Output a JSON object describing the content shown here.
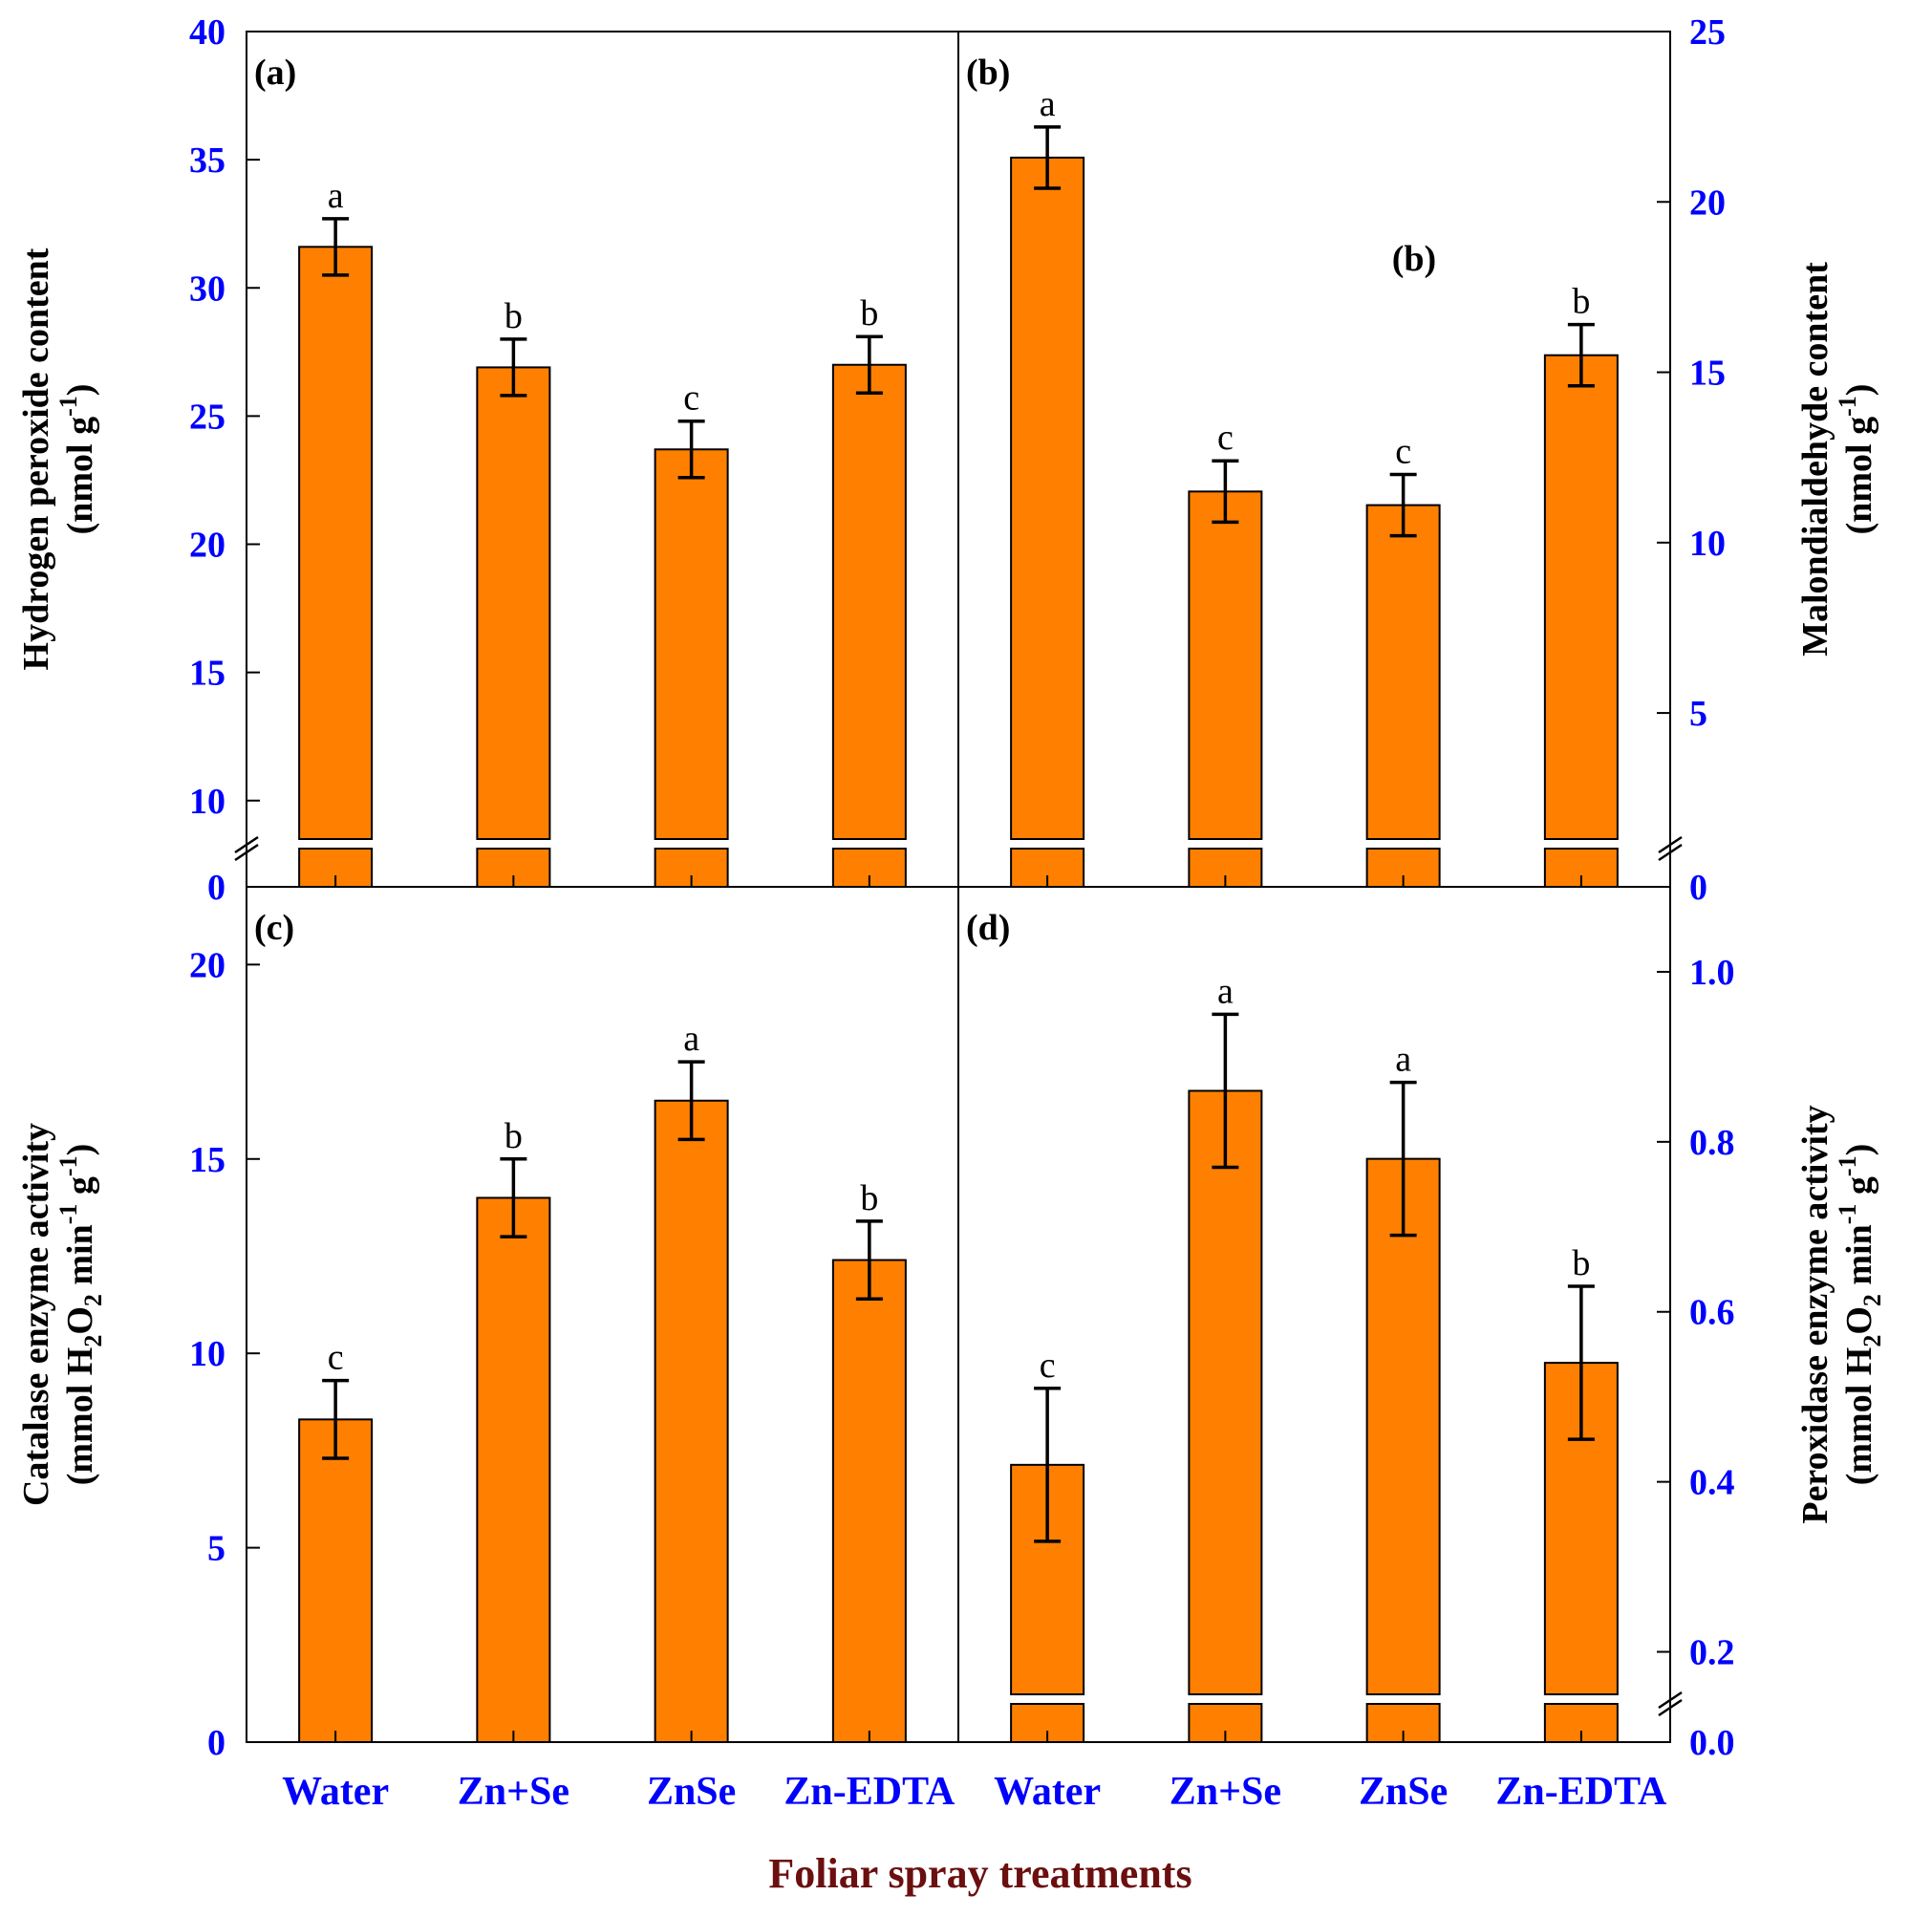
{
  "x_axis_title": "Foliar spray treatments",
  "chart_data": [
    {
      "id": "a",
      "type": "bar",
      "panel_label": "(a)",
      "ylabel": [
        "Hydrogen peroxide content",
        "(nmol g",
        "-1",
        ")"
      ],
      "axis_side": "left",
      "categories": [
        "Water",
        "Zn+Se",
        "ZnSe",
        "Zn-EDTA"
      ],
      "values": [
        31.6,
        26.9,
        23.7,
        27.0
      ],
      "errors": [
        1.1,
        1.1,
        1.1,
        1.1
      ],
      "letters": [
        "a",
        "b",
        "c",
        "b"
      ],
      "ylim": [
        8.5,
        40
      ],
      "ticks": [
        10,
        15,
        20,
        25,
        30,
        35,
        40
      ],
      "zero_label": "0",
      "axis_break": true,
      "bar_color": "#ff8000"
    },
    {
      "id": "b",
      "type": "bar",
      "panel_label": "(b)",
      "annotation": "(b)",
      "ylabel": [
        "Malondialdehyde content",
        "(nmol g",
        "-1",
        ")"
      ],
      "axis_side": "right",
      "categories": [
        "Water",
        "Zn+Se",
        "ZnSe",
        "Zn-EDTA"
      ],
      "values": [
        21.3,
        11.5,
        11.1,
        15.5
      ],
      "errors": [
        0.9,
        0.9,
        0.9,
        0.9
      ],
      "letters": [
        "a",
        "c",
        "c",
        "b"
      ],
      "ylim": [
        1.3,
        25
      ],
      "ticks": [
        5,
        10,
        15,
        20,
        25
      ],
      "zero_label": "0",
      "axis_break": true,
      "bar_color": "#ff8000"
    },
    {
      "id": "c",
      "type": "bar",
      "panel_label": "(c)",
      "ylabel": [
        "Catalase enzyme activity",
        "(mmol H",
        "2",
        "O",
        "2",
        " min",
        "-1",
        " g",
        "-1",
        ")"
      ],
      "axis_side": "left",
      "categories": [
        "Water",
        "Zn+Se",
        "ZnSe",
        "Zn-EDTA"
      ],
      "values": [
        8.3,
        14.0,
        16.5,
        12.4
      ],
      "errors": [
        1.0,
        1.0,
        1.0,
        1.0
      ],
      "letters": [
        "c",
        "b",
        "a",
        "b"
      ],
      "ylim": [
        0,
        22
      ],
      "ticks": [
        0,
        5,
        10,
        15,
        20
      ],
      "axis_break": false,
      "bar_color": "#ff8000"
    },
    {
      "id": "d",
      "type": "bar",
      "panel_label": "(d)",
      "ylabel": [
        "Peroxidase enzyme activity",
        "(mmol H",
        "2",
        "O",
        "2",
        " min",
        "-1",
        " g",
        "-1",
        ")"
      ],
      "axis_side": "right",
      "categories": [
        "Water",
        "Zn+Se",
        "ZnSe",
        "Zn-EDTA"
      ],
      "values": [
        0.42,
        0.86,
        0.78,
        0.54
      ],
      "errors": [
        0.09,
        0.09,
        0.09,
        0.09
      ],
      "letters": [
        "c",
        "a",
        "a",
        "b"
      ],
      "ylim": [
        0.15,
        1.1
      ],
      "ticks": [
        0.2,
        0.4,
        0.6,
        0.8,
        1.0
      ],
      "tick_format": "1dp",
      "zero_label": "0.0",
      "axis_break": true,
      "bar_color": "#ff8000"
    }
  ]
}
